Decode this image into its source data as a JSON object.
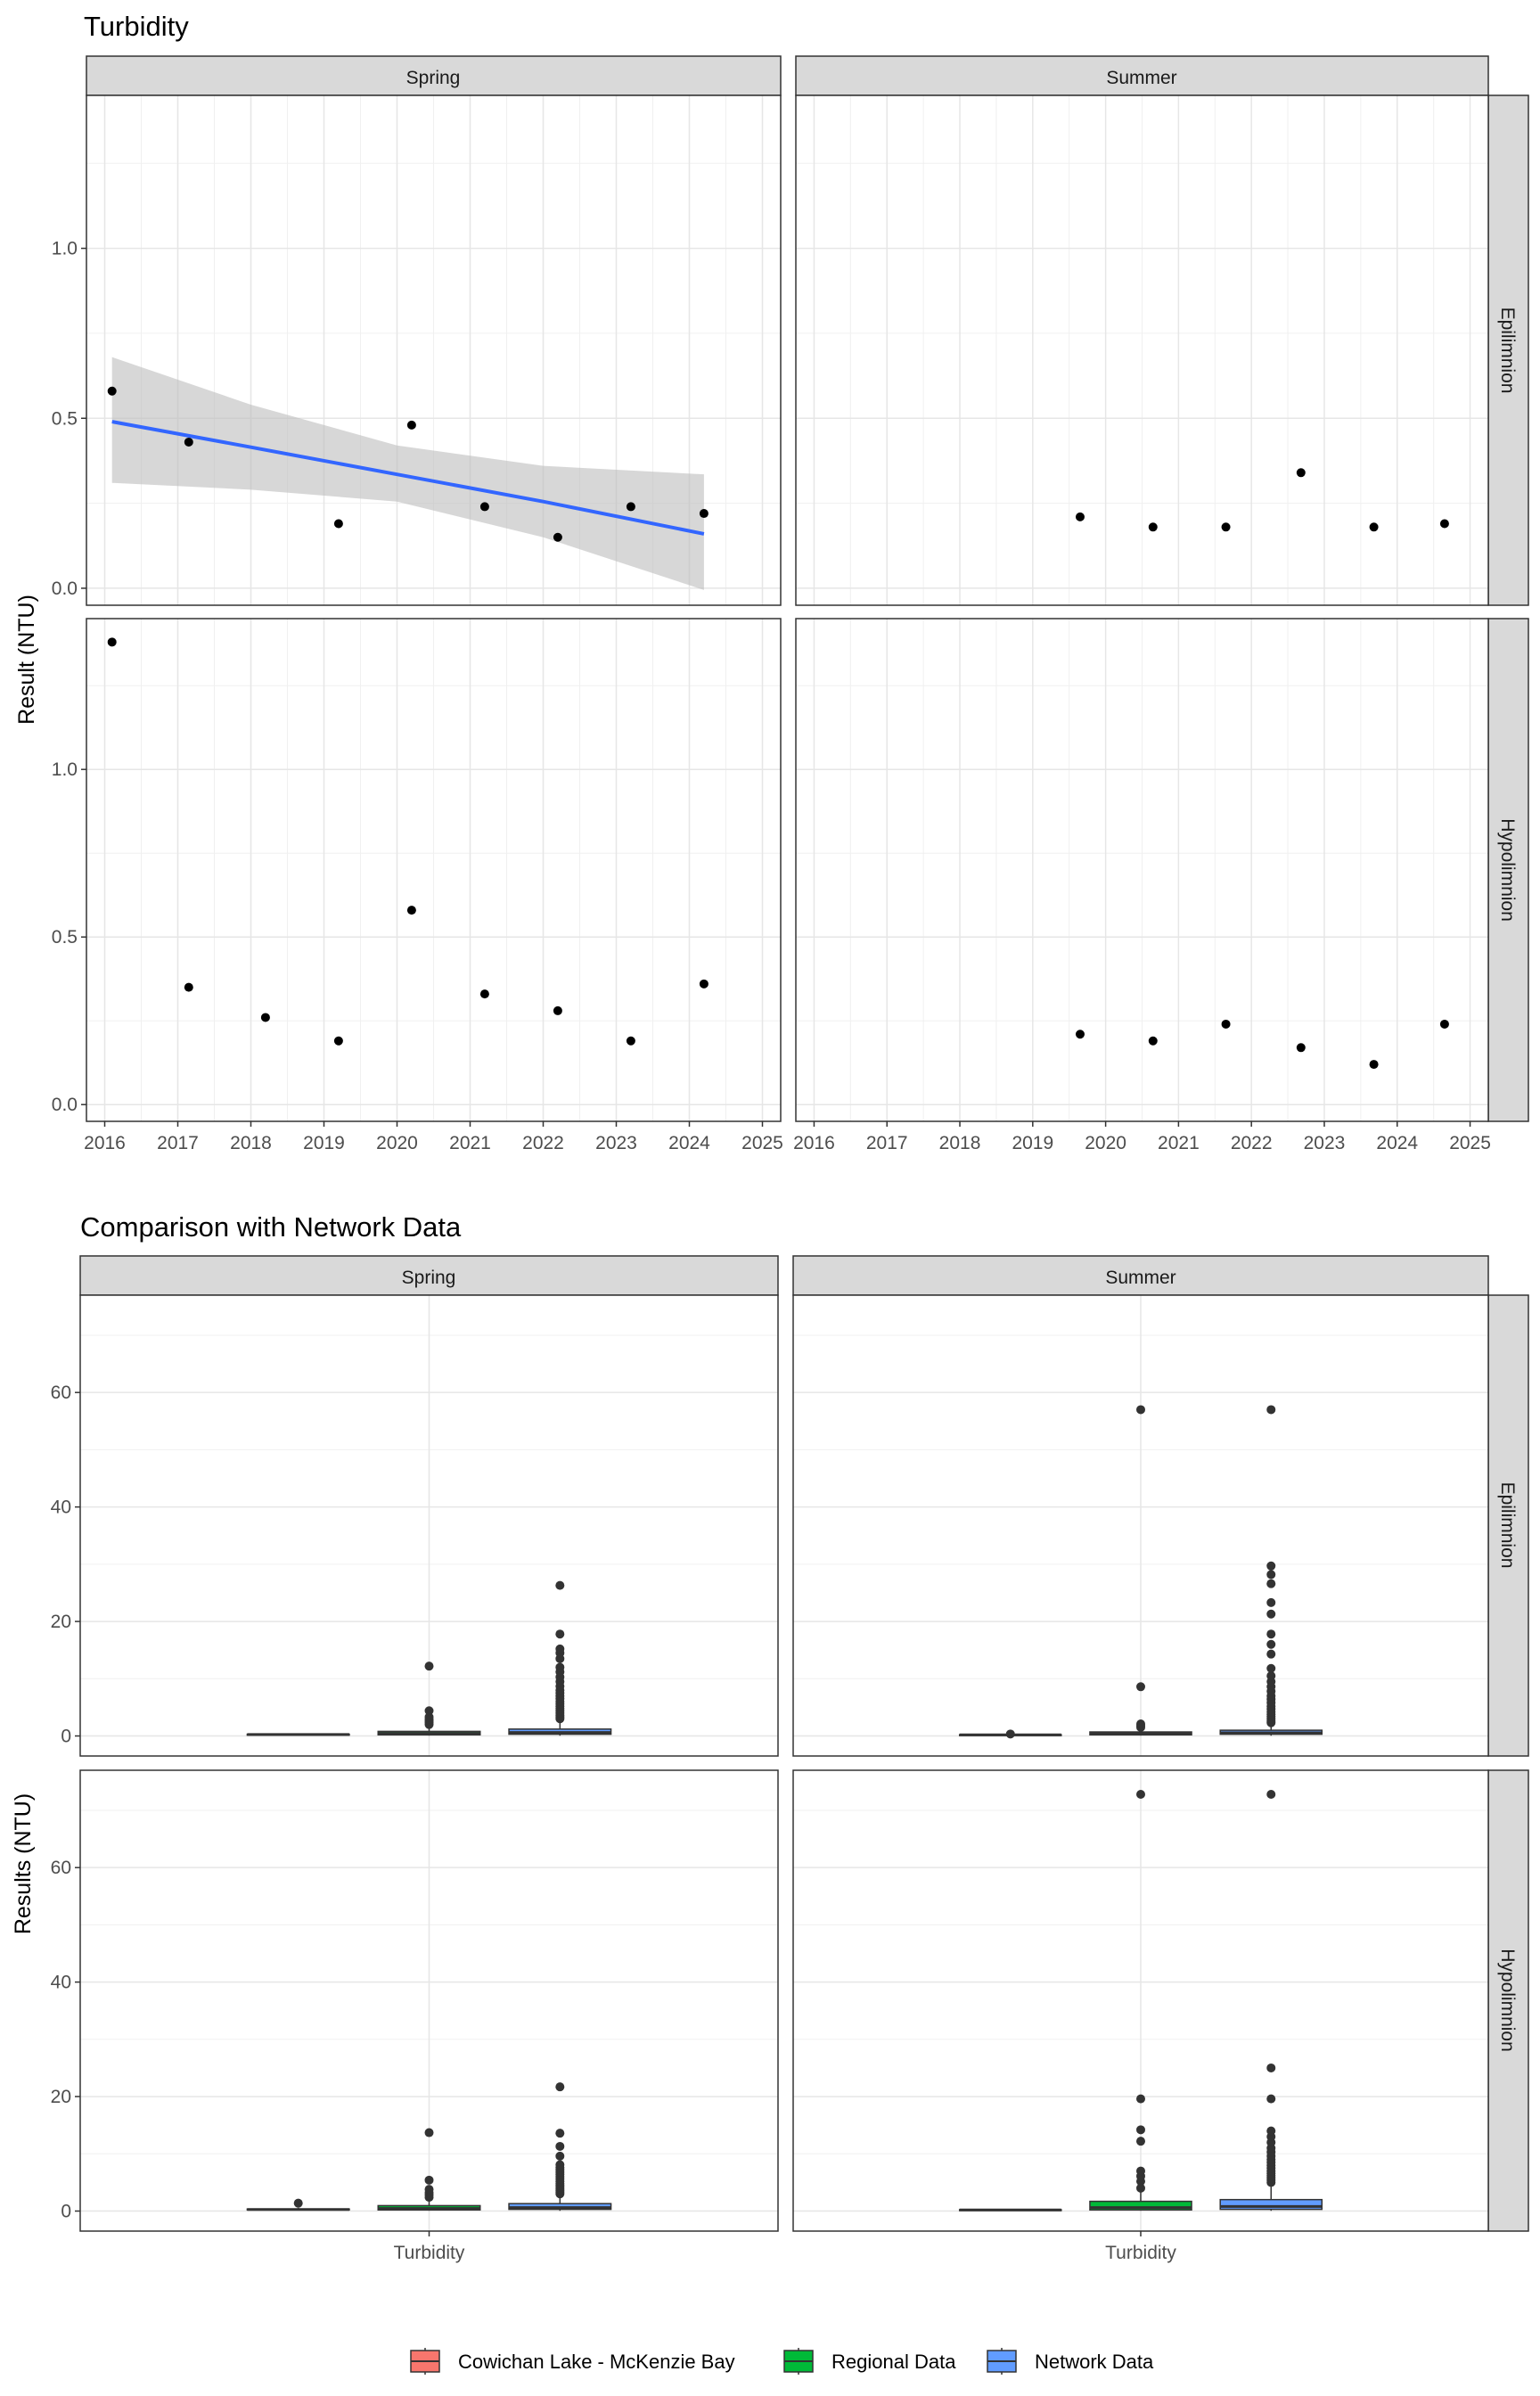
{
  "chart_data": [
    {
      "type": "scatter",
      "title": "Turbidity",
      "ylabel": "Result (NTU)",
      "xlabel": "",
      "ylim": [
        -0.05,
        1.45
      ],
      "xlim": [
        2015.75,
        2025.25
      ],
      "yticks": [
        0.0,
        0.5,
        1.0
      ],
      "ytick_labels": [
        "0.0",
        "0.5",
        "1.0"
      ],
      "xticks": [
        2016,
        2017,
        2018,
        2019,
        2020,
        2021,
        2022,
        2023,
        2024,
        2025
      ],
      "xtick_labels": [
        "2016",
        "2017",
        "2018",
        "2019",
        "2020",
        "2021",
        "2022",
        "2023",
        "2024",
        "2025"
      ],
      "grid": true,
      "column_strips": [
        "Spring",
        "Summer"
      ],
      "row_strips": [
        "Epilimnion",
        "Hypolimnion"
      ],
      "colors": {
        "trend_line": "#3366ff",
        "confidence_band": "#bdbdbd",
        "points": "#000000",
        "strip_fill": "#d9d9d9"
      },
      "panels": [
        {
          "season": "Spring",
          "layer": "Epilimnion",
          "points": [
            {
              "x": 2016.1,
              "y": 0.58
            },
            {
              "x": 2017.15,
              "y": 0.43
            },
            {
              "x": 2019.2,
              "y": 0.19
            },
            {
              "x": 2020.2,
              "y": 0.48
            },
            {
              "x": 2021.2,
              "y": 0.24
            },
            {
              "x": 2022.2,
              "y": 0.15
            },
            {
              "x": 2023.2,
              "y": 0.24
            },
            {
              "x": 2024.2,
              "y": 0.22
            }
          ],
          "trend": {
            "x": [
              2016.1,
              2018.0,
              2020.0,
              2022.0,
              2024.2
            ],
            "fit": [
              0.49,
              0.415,
              0.335,
              0.255,
              0.16
            ],
            "lower": [
              0.31,
              0.29,
              0.255,
              0.15,
              -0.005
            ],
            "upper": [
              0.68,
              0.54,
              0.42,
              0.36,
              0.335
            ]
          }
        },
        {
          "season": "Summer",
          "layer": "Epilimnion",
          "points": [
            {
              "x": 2019.65,
              "y": 0.21
            },
            {
              "x": 2020.65,
              "y": 0.18
            },
            {
              "x": 2021.65,
              "y": 0.18
            },
            {
              "x": 2022.68,
              "y": 0.34
            },
            {
              "x": 2023.68,
              "y": 0.18
            },
            {
              "x": 2024.65,
              "y": 0.19
            }
          ]
        },
        {
          "season": "Spring",
          "layer": "Hypolimnion",
          "points": [
            {
              "x": 2016.1,
              "y": 1.38
            },
            {
              "x": 2017.15,
              "y": 0.35
            },
            {
              "x": 2018.2,
              "y": 0.26
            },
            {
              "x": 2019.2,
              "y": 0.19
            },
            {
              "x": 2020.2,
              "y": 0.58
            },
            {
              "x": 2021.2,
              "y": 0.33
            },
            {
              "x": 2022.2,
              "y": 0.28
            },
            {
              "x": 2023.2,
              "y": 0.19
            },
            {
              "x": 2024.2,
              "y": 0.36
            }
          ]
        },
        {
          "season": "Summer",
          "layer": "Hypolimnion",
          "points": [
            {
              "x": 2019.65,
              "y": 0.21
            },
            {
              "x": 2020.65,
              "y": 0.19
            },
            {
              "x": 2021.65,
              "y": 0.24
            },
            {
              "x": 2022.68,
              "y": 0.17
            },
            {
              "x": 2023.68,
              "y": 0.12
            },
            {
              "x": 2024.65,
              "y": 0.24
            }
          ]
        }
      ]
    },
    {
      "type": "box",
      "title": "Comparison with Network Data",
      "ylabel": "Results (NTU)",
      "xlabel": "",
      "categories": [
        "Turbidity"
      ],
      "ylim": [
        -3.5,
        77
      ],
      "yticks": [
        0,
        20,
        40,
        60
      ],
      "ytick_labels": [
        "0",
        "20",
        "40",
        "60"
      ],
      "grid": true,
      "column_strips": [
        "Spring",
        "Summer"
      ],
      "row_strips": [
        "Epilimnion",
        "Hypolimnion"
      ],
      "legend": {
        "position": "bottom",
        "entries": [
          "Cowichan Lake - McKenzie Bay",
          "Regional Data",
          "Network Data"
        ]
      },
      "colors": {
        "Cowichan Lake - McKenzie Bay": "#f8766d",
        "Regional Data": "#00ba38",
        "Network Data": "#619cff"
      },
      "panels": [
        {
          "season": "Spring",
          "layer": "Epilimnion",
          "boxes": [
            {
              "group": "Cowichan Lake - McKenzie Bay",
              "q1": 0.2,
              "median": 0.25,
              "q3": 0.3,
              "whisker_low": 0.15,
              "whisker_high": 0.4,
              "outliers": []
            },
            {
              "group": "Regional Data",
              "q1": 0.2,
              "median": 0.45,
              "q3": 0.8,
              "whisker_low": 0.05,
              "whisker_high": 1.6,
              "outliers": [
                2.0,
                2.3,
                2.6,
                2.9,
                3.3,
                4.4,
                12.2
              ]
            },
            {
              "group": "Network Data",
              "q1": 0.3,
              "median": 0.6,
              "q3": 1.2,
              "whisker_low": 0.05,
              "whisker_high": 2.5,
              "outliers": [
                3.0,
                3.3,
                3.6,
                4.0,
                4.4,
                4.8,
                5.2,
                5.6,
                6.0,
                6.5,
                7.0,
                7.5,
                8.0,
                8.7,
                9.5,
                10.3,
                11.2,
                12.0,
                13.5,
                14.5,
                15.2,
                17.8,
                26.3
              ]
            }
          ]
        },
        {
          "season": "Summer",
          "layer": "Epilimnion",
          "boxes": [
            {
              "group": "Cowichan Lake - McKenzie Bay",
              "q1": 0.18,
              "median": 0.2,
              "q3": 0.22,
              "whisker_low": 0.17,
              "whisker_high": 0.23,
              "outliers": [
                0.34
              ]
            },
            {
              "group": "Regional Data",
              "q1": 0.2,
              "median": 0.4,
              "q3": 0.7,
              "whisker_low": 0.05,
              "whisker_high": 1.3,
              "outliers": [
                1.5,
                1.8,
                2.1,
                8.6,
                57.0
              ]
            },
            {
              "group": "Network Data",
              "q1": 0.3,
              "median": 0.55,
              "q3": 1.0,
              "whisker_low": 0.05,
              "whisker_high": 2.0,
              "outliers": [
                2.3,
                2.6,
                3.0,
                3.4,
                3.8,
                4.2,
                4.7,
                5.2,
                5.8,
                6.4,
                7.0,
                7.8,
                8.6,
                9.5,
                10.5,
                11.8,
                14.3,
                16.0,
                17.8,
                21.3,
                23.3,
                26.6,
                28.2,
                29.7,
                57.0
              ]
            }
          ]
        },
        {
          "season": "Spring",
          "layer": "Hypolimnion",
          "boxes": [
            {
              "group": "Cowichan Lake - McKenzie Bay",
              "q1": 0.2,
              "median": 0.28,
              "q3": 0.36,
              "whisker_low": 0.19,
              "whisker_high": 0.58,
              "outliers": [
                1.38
              ]
            },
            {
              "group": "Regional Data",
              "q1": 0.2,
              "median": 0.45,
              "q3": 0.95,
              "whisker_low": 0.05,
              "whisker_high": 2.0,
              "outliers": [
                2.4,
                2.8,
                3.2,
                3.8,
                5.4,
                13.7
              ]
            },
            {
              "group": "Network Data",
              "q1": 0.3,
              "median": 0.6,
              "q3": 1.3,
              "whisker_low": 0.05,
              "whisker_high": 2.7,
              "outliers": [
                3.0,
                3.3,
                3.6,
                3.9,
                4.2,
                4.5,
                4.8,
                5.2,
                5.6,
                6.0,
                6.4,
                6.8,
                7.2,
                7.6,
                8.1,
                9.6,
                11.3,
                13.6,
                21.7
              ]
            }
          ]
        },
        {
          "season": "Summer",
          "layer": "Hypolimnion",
          "boxes": [
            {
              "group": "Cowichan Lake - McKenzie Bay",
              "q1": 0.17,
              "median": 0.2,
              "q3": 0.24,
              "whisker_low": 0.12,
              "whisker_high": 0.24,
              "outliers": []
            },
            {
              "group": "Regional Data",
              "q1": 0.2,
              "median": 0.6,
              "q3": 1.7,
              "whisker_low": 0.05,
              "whisker_high": 3.5,
              "outliers": [
                4.0,
                5.2,
                6.1,
                7.0,
                12.2,
                14.2,
                19.6,
                72.8
              ]
            },
            {
              "group": "Network Data",
              "q1": 0.3,
              "median": 0.8,
              "q3": 2.0,
              "whisker_low": 0.05,
              "whisker_high": 4.5,
              "outliers": [
                5.0,
                5.4,
                5.8,
                6.2,
                6.6,
                7.0,
                7.5,
                8.0,
                8.5,
                9.0,
                9.6,
                10.3,
                11.0,
                12.0,
                13.0,
                14.0,
                19.6,
                25.0,
                72.8
              ]
            }
          ]
        }
      ]
    }
  ]
}
